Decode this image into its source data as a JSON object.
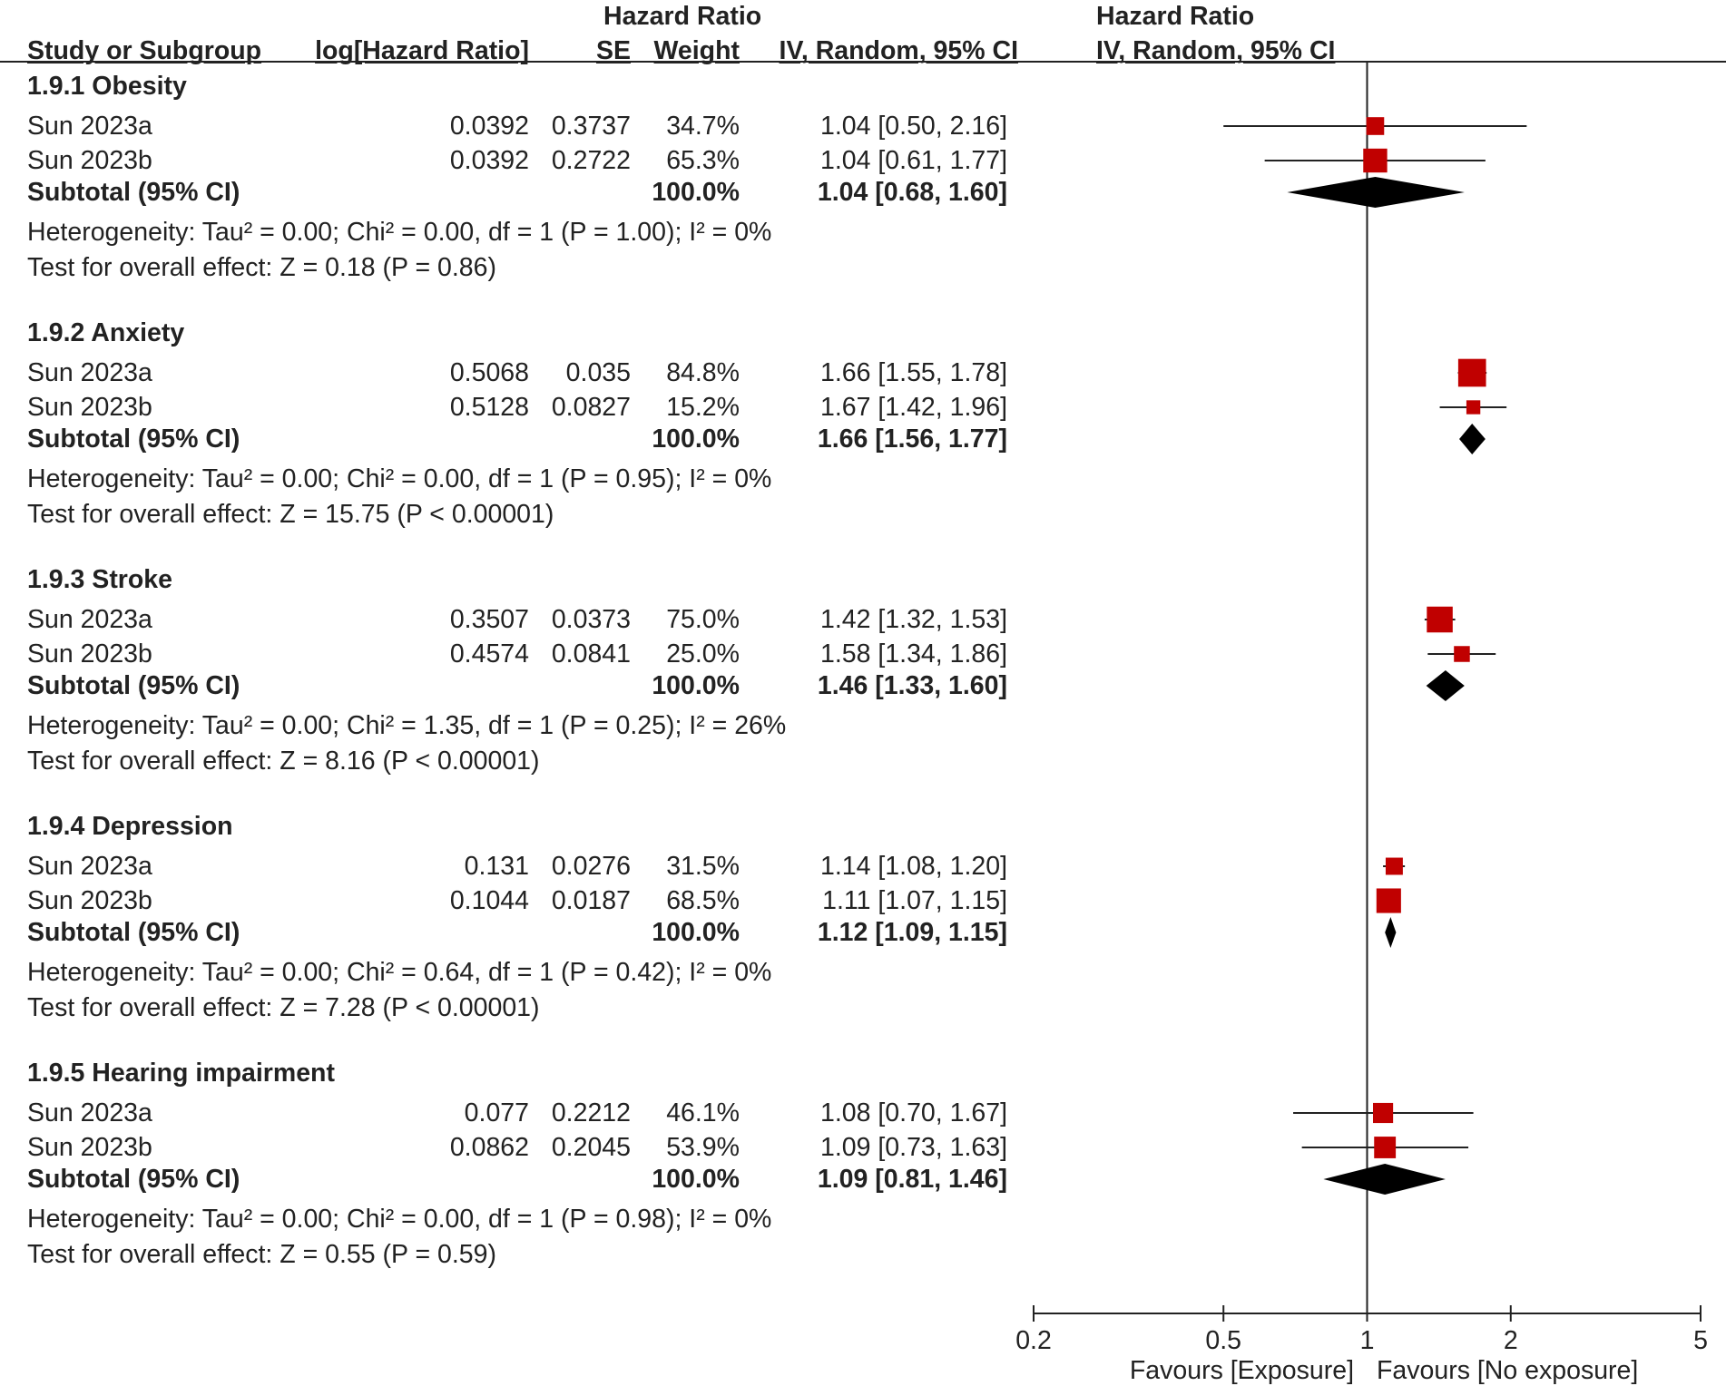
{
  "chart_data": {
    "type": "forest",
    "headers": {
      "study": "Study or Subgroup",
      "log_hr": "log[Hazard Ratio]",
      "se": "SE",
      "weight": "Weight",
      "hr_title": "Hazard Ratio",
      "hr_method": "IV, Random, 95% CI",
      "plot_title": "Hazard Ratio",
      "plot_method": "IV, Random, 95% CI"
    },
    "groups": [
      {
        "title": "1.9.1 Obesity",
        "studies": [
          {
            "name": "Sun 2023a",
            "log_hr": "0.0392",
            "se": "0.3737",
            "weight": "34.7%",
            "ci_text": "1.04 [0.50, 2.16]",
            "hr": 1.04,
            "lo": 0.5,
            "hi": 2.16,
            "w": 34.7
          },
          {
            "name": "Sun 2023b",
            "log_hr": "0.0392",
            "se": "0.2722",
            "weight": "65.3%",
            "ci_text": "1.04 [0.61, 1.77]",
            "hr": 1.04,
            "lo": 0.61,
            "hi": 1.77,
            "w": 65.3
          }
        ],
        "subtotal": {
          "label": "Subtotal (95% CI)",
          "weight": "100.0%",
          "ci_text": "1.04 [0.68, 1.60]",
          "hr": 1.04,
          "lo": 0.68,
          "hi": 1.6
        },
        "heterogeneity": "Heterogeneity: Tau² = 0.00; Chi² = 0.00, df = 1 (P = 1.00); I² = 0%",
        "overall": "Test for overall effect: Z = 0.18 (P = 0.86)"
      },
      {
        "title": "1.9.2 Anxiety",
        "studies": [
          {
            "name": "Sun 2023a",
            "log_hr": "0.5068",
            "se": "0.035",
            "weight": "84.8%",
            "ci_text": "1.66 [1.55, 1.78]",
            "hr": 1.66,
            "lo": 1.55,
            "hi": 1.78,
            "w": 84.8
          },
          {
            "name": "Sun 2023b",
            "log_hr": "0.5128",
            "se": "0.0827",
            "weight": "15.2%",
            "ci_text": "1.67 [1.42, 1.96]",
            "hr": 1.67,
            "lo": 1.42,
            "hi": 1.96,
            "w": 15.2
          }
        ],
        "subtotal": {
          "label": "Subtotal (95% CI)",
          "weight": "100.0%",
          "ci_text": "1.66 [1.56, 1.77]",
          "hr": 1.66,
          "lo": 1.56,
          "hi": 1.77
        },
        "heterogeneity": "Heterogeneity: Tau² = 0.00; Chi² = 0.00, df = 1 (P = 0.95); I² = 0%",
        "overall": "Test for overall effect: Z = 15.75 (P < 0.00001)"
      },
      {
        "title": "1.9.3 Stroke",
        "studies": [
          {
            "name": "Sun 2023a",
            "log_hr": "0.3507",
            "se": "0.0373",
            "weight": "75.0%",
            "ci_text": "1.42 [1.32, 1.53]",
            "hr": 1.42,
            "lo": 1.32,
            "hi": 1.53,
            "w": 75.0
          },
          {
            "name": "Sun 2023b",
            "log_hr": "0.4574",
            "se": "0.0841",
            "weight": "25.0%",
            "ci_text": "1.58 [1.34, 1.86]",
            "hr": 1.58,
            "lo": 1.34,
            "hi": 1.86,
            "w": 25.0
          }
        ],
        "subtotal": {
          "label": "Subtotal (95% CI)",
          "weight": "100.0%",
          "ci_text": "1.46 [1.33, 1.60]",
          "hr": 1.46,
          "lo": 1.33,
          "hi": 1.6
        },
        "heterogeneity": "Heterogeneity: Tau² = 0.00; Chi² = 1.35, df = 1 (P = 0.25); I² = 26%",
        "overall": "Test for overall effect: Z = 8.16 (P < 0.00001)"
      },
      {
        "title": "1.9.4 Depression",
        "studies": [
          {
            "name": "Sun 2023a",
            "log_hr": "0.131",
            "se": "0.0276",
            "weight": "31.5%",
            "ci_text": "1.14 [1.08, 1.20]",
            "hr": 1.14,
            "lo": 1.08,
            "hi": 1.2,
            "w": 31.5
          },
          {
            "name": "Sun 2023b",
            "log_hr": "0.1044",
            "se": "0.0187",
            "weight": "68.5%",
            "ci_text": "1.11 [1.07, 1.15]",
            "hr": 1.11,
            "lo": 1.07,
            "hi": 1.15,
            "w": 68.5
          }
        ],
        "subtotal": {
          "label": "Subtotal (95% CI)",
          "weight": "100.0%",
          "ci_text": "1.12 [1.09, 1.15]",
          "hr": 1.12,
          "lo": 1.09,
          "hi": 1.15
        },
        "heterogeneity": "Heterogeneity: Tau² = 0.00; Chi² = 0.64, df = 1 (P = 0.42); I² = 0%",
        "overall": "Test for overall effect: Z = 7.28 (P < 0.00001)"
      },
      {
        "title": "1.9.5 Hearing impairment",
        "studies": [
          {
            "name": "Sun 2023a",
            "log_hr": "0.077",
            "se": "0.2212",
            "weight": "46.1%",
            "ci_text": "1.08 [0.70, 1.67]",
            "hr": 1.08,
            "lo": 0.7,
            "hi": 1.67,
            "w": 46.1
          },
          {
            "name": "Sun 2023b",
            "log_hr": "0.0862",
            "se": "0.2045",
            "weight": "53.9%",
            "ci_text": "1.09 [0.73, 1.63]",
            "hr": 1.09,
            "lo": 0.73,
            "hi": 1.63,
            "w": 53.9
          }
        ],
        "subtotal": {
          "label": "Subtotal (95% CI)",
          "weight": "100.0%",
          "ci_text": "1.09 [0.81, 1.46]",
          "hr": 1.09,
          "lo": 0.81,
          "hi": 1.46
        },
        "heterogeneity": "Heterogeneity: Tau² = 0.00; Chi² = 0.00, df = 1 (P = 0.98); I² = 0%",
        "overall": "Test for overall effect: Z = 0.55 (P = 0.59)"
      }
    ],
    "axis": {
      "scale": "log",
      "min": 0.2,
      "max": 5,
      "reference": 1,
      "ticks": [
        0.2,
        0.5,
        1,
        2,
        5
      ],
      "tick_labels": [
        "0.2",
        "0.5",
        "1",
        "2",
        "5"
      ],
      "favours_left": "Favours [Exposure]",
      "favours_right": "Favours [No exposure]"
    },
    "colors": {
      "study_marker": "#c00000",
      "diamond": "#000000",
      "line": "#222222"
    }
  }
}
